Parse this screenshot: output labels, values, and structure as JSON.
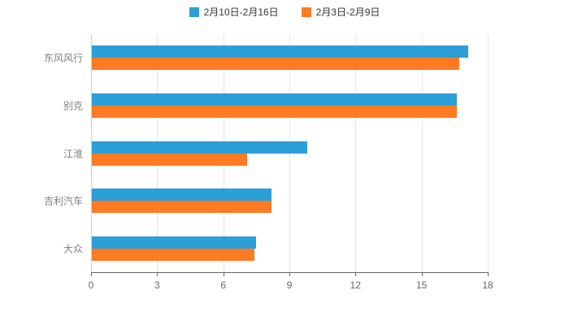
{
  "chart_data": {
    "type": "bar",
    "orientation": "horizontal",
    "title": "",
    "categories": [
      "东风风行",
      "别克",
      "江淮",
      "吉利汽车",
      "大众"
    ],
    "series": [
      {
        "name": "2月10日-2月16日",
        "color": "#2B9FD8",
        "values": [
          17.1,
          16.6,
          9.8,
          8.2,
          7.5
        ]
      },
      {
        "name": "2月3日-2月9日",
        "color": "#FF7B21",
        "values": [
          16.7,
          16.6,
          7.1,
          8.2,
          7.4
        ]
      }
    ],
    "xlabel": "",
    "ylabel": "",
    "xlim": [
      0,
      18
    ],
    "xticks": [
      0,
      3,
      6,
      9,
      12,
      15,
      18
    ],
    "grid": true,
    "legend_position": "top",
    "background": "#ffffff",
    "grid_line_color": "#e3e3e3",
    "axis_color": "#666666",
    "label_color": "#808080"
  },
  "legend": {
    "items": [
      {
        "label": "2月10日-2月16日",
        "color": "#2B9FD8"
      },
      {
        "label": "2月3日-2月9日",
        "color": "#FF7B21"
      }
    ]
  }
}
